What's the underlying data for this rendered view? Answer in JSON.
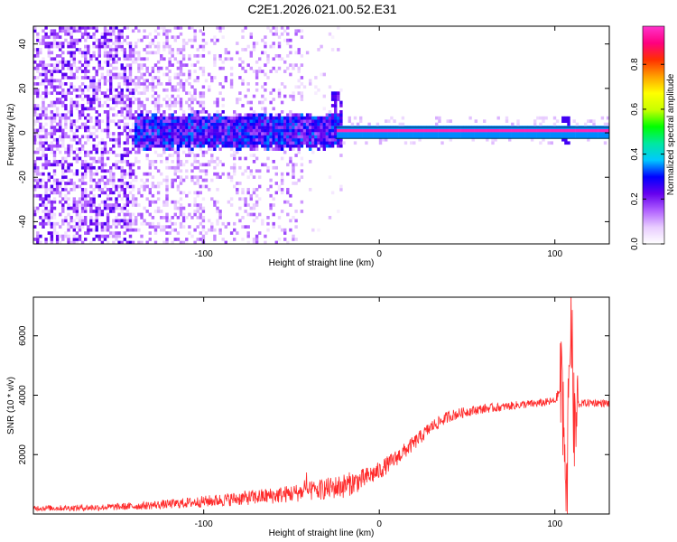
{
  "title": "C2E1.2026.021.00.52.E31",
  "chart_data": [
    {
      "type": "heatmap",
      "xlabel": "Height of straight line (km)",
      "ylabel": "Frequency (Hz)",
      "xlim": [
        -197,
        131
      ],
      "ylim": [
        -50,
        48
      ],
      "x_ticks": [
        -100,
        0,
        100
      ],
      "y_ticks": [
        -40,
        -20,
        0,
        20,
        40
      ],
      "colorbar": {
        "label": "Normalized spectral amplitude",
        "range": [
          0,
          0.97
        ],
        "ticks": [
          0.0,
          0.2,
          0.4,
          0.6,
          0.8
        ],
        "colors": [
          "#ffffff",
          "#e8ccff",
          "#b060ff",
          "#6600ee",
          "#0000ff",
          "#00c8ff",
          "#00e8a0",
          "#00ff00",
          "#c8ff00",
          "#ffff00",
          "#ffa000",
          "#ff3000",
          "#ff0080",
          "#ff33cc"
        ]
      },
      "features": [
        {
          "description": "broadband noise",
          "x_range": [
            -197,
            -45
          ],
          "freq_range": [
            -50,
            48
          ],
          "amplitude": 0.1
        },
        {
          "description": "band",
          "x_range": [
            -140,
            -22
          ],
          "freq_range": [
            -6,
            6
          ],
          "amplitude": 0.3
        },
        {
          "description": "narrow line",
          "x_range": [
            -25,
            131
          ],
          "freq": 0,
          "amplitude": 0.95
        }
      ]
    },
    {
      "type": "line",
      "xlabel": "Height of straight line (km)",
      "ylabel": "SNR (10 * v/v)",
      "xlim": [
        -197,
        131
      ],
      "ylim": [
        0,
        7300
      ],
      "x_ticks": [
        -100,
        0,
        100
      ],
      "y_ticks": [
        2000,
        4000,
        6000
      ],
      "color": "#ff2a2a",
      "series": [
        {
          "x": [
            -197,
            -180,
            -160,
            -140,
            -120,
            -100,
            -80,
            -60,
            -40,
            -30,
            -20,
            -10,
            0,
            10,
            20,
            30,
            40,
            50,
            60,
            70,
            80,
            90,
            100,
            104,
            107,
            109,
            111,
            113,
            120,
            131
          ],
          "values": [
            200,
            200,
            220,
            260,
            330,
            420,
            520,
            620,
            760,
            850,
            950,
            1150,
            1450,
            1900,
            2400,
            2950,
            3300,
            3450,
            3550,
            3600,
            3680,
            3720,
            3800,
            4300,
            1000,
            7200,
            2700,
            3700,
            3750,
            3720
          ],
          "noise": [
            70,
            70,
            80,
            90,
            110,
            140,
            170,
            200,
            230,
            260,
            300,
            260,
            220,
            200,
            180,
            160,
            140,
            120,
            110,
            100,
            100,
            100,
            100,
            150,
            100,
            0,
            100,
            90,
            90,
            90
          ]
        }
      ]
    }
  ]
}
